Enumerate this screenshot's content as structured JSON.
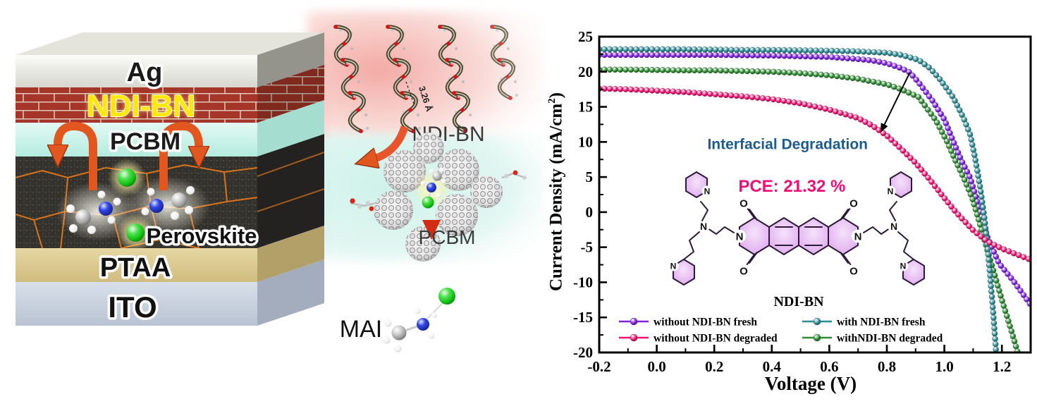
{
  "device_stack": {
    "layers": [
      {
        "id": "ag",
        "label": "Ag",
        "front_color": "#f1f1ec",
        "side_color": "#94948c",
        "top_color": "#e2e2da",
        "label_color": "#1a1a1a"
      },
      {
        "id": "ndi-bn",
        "label": "NDI-BN",
        "front_color": "#a53528",
        "side_color": "#832a20",
        "mortar_color": "#dcc9b8",
        "label_color": "#ffe70a"
      },
      {
        "id": "pcbm",
        "label": "PCBM",
        "front_color": "#cdf3ea",
        "side_color": "#a5ded1",
        "label_color": "#1a1a1a"
      },
      {
        "id": "perovskite",
        "label": "Perovskite",
        "front_color": "#34322c",
        "side_color": "#232220",
        "grain_boundary_color": "#e0761c",
        "label_color": "#111111"
      },
      {
        "id": "ptaa",
        "label": "PTAA",
        "front_color": "#dcc98f",
        "side_color": "#b3a068",
        "label_color": "#111111"
      },
      {
        "id": "ito",
        "label": "ITO",
        "front_color": "#cad3df",
        "side_color": "#a3adbd",
        "label_color": "#111111"
      }
    ]
  },
  "inset": {
    "ndi_bn_label": "NDI-BN",
    "pcbm_label": "PCBM",
    "mai_label": "MAI",
    "pi_stacking_distance": "3.26 Å",
    "atom_colors": {
      "carbon": "#9a9a9a",
      "nitrogen": "#2c3fe0",
      "hydrogen": "#f5f5f5",
      "halide": "#17c617",
      "oxygen": "#dd2211"
    }
  },
  "chart_data": {
    "type": "line",
    "title": "",
    "xlabel": "Voltage (V)",
    "ylabel": "Current Density (mA/cm2)",
    "ylabel_parts": {
      "main": "Current Density (mA/cm",
      "sup": "2",
      "close": ")"
    },
    "xlim": [
      -0.2,
      1.3
    ],
    "ylim": [
      -20,
      25
    ],
    "grid": false,
    "x_tick_values": [
      -0.2,
      0.0,
      0.2,
      0.4,
      0.6,
      0.8,
      1.0,
      1.2
    ],
    "x_tick_labels": [
      "-0.2",
      "0.0",
      "0.2",
      "0.4",
      "0.6",
      "0.8",
      "1.0",
      "1.2"
    ],
    "x_minor_values": [
      -0.1,
      0.1,
      0.3,
      0.5,
      0.7,
      0.9,
      1.1,
      1.3
    ],
    "y_tick_values": [
      -20,
      -15,
      -10,
      -5,
      0,
      5,
      10,
      15,
      20,
      25
    ],
    "y_tick_labels": [
      "-20",
      "-15",
      "-10",
      "-5",
      "0",
      "5",
      "10",
      "15",
      "20",
      "25"
    ],
    "y_minor_values": [
      -17.5,
      -12.5,
      -7.5,
      -2.5,
      2.5,
      7.5,
      12.5,
      17.5,
      22.5
    ],
    "legend_position": "lower-left-two-columns",
    "series": [
      {
        "name": "without NDI-BN fresh",
        "color": "#7e22dd",
        "points": [
          [
            -0.2,
            22.4
          ],
          [
            -0.1,
            22.4
          ],
          [
            0,
            22.4
          ],
          [
            0.1,
            22.4
          ],
          [
            0.2,
            22.4
          ],
          [
            0.3,
            22.35
          ],
          [
            0.4,
            22.3
          ],
          [
            0.5,
            22.2
          ],
          [
            0.6,
            22.1
          ],
          [
            0.7,
            21.8
          ],
          [
            0.75,
            21.6
          ],
          [
            0.8,
            21.2
          ],
          [
            0.85,
            20.5
          ],
          [
            0.88,
            19.9
          ],
          [
            0.91,
            18.5
          ],
          [
            0.96,
            15.8
          ],
          [
            1.0,
            13.2
          ],
          [
            1.03,
            10.2
          ],
          [
            1.06,
            7.3
          ],
          [
            1.09,
            4.9
          ],
          [
            1.11,
            2.1
          ],
          [
            1.13,
            -0.8
          ],
          [
            1.15,
            -3.6
          ],
          [
            1.19,
            -7.3
          ],
          [
            1.24,
            -9.8
          ],
          [
            1.3,
            -13.2
          ]
        ]
      },
      {
        "name": "withNDI-BN degraded",
        "color": "#2e8b33",
        "points": [
          [
            -0.2,
            20.3
          ],
          [
            -0.1,
            20.3
          ],
          [
            0,
            20.25
          ],
          [
            0.1,
            20.2
          ],
          [
            0.2,
            20.2
          ],
          [
            0.3,
            20.1
          ],
          [
            0.4,
            20.0
          ],
          [
            0.5,
            19.8
          ],
          [
            0.6,
            19.5
          ],
          [
            0.7,
            19.0
          ],
          [
            0.8,
            18.2
          ],
          [
            0.85,
            17.5
          ],
          [
            0.91,
            16.4
          ],
          [
            0.97,
            13.1
          ],
          [
            1.01,
            10.0
          ],
          [
            1.04,
            7.2
          ],
          [
            1.067,
            4.9
          ],
          [
            1.096,
            2.1
          ],
          [
            1.115,
            -0.5
          ],
          [
            1.15,
            -5.5
          ],
          [
            1.2,
            -12.5
          ],
          [
            1.23,
            -16.5
          ],
          [
            1.255,
            -20
          ]
        ]
      },
      {
        "name": "with NDI-BN fresh",
        "color": "#2e8b94",
        "points": [
          [
            -0.2,
            23.2
          ],
          [
            -0.1,
            23.2
          ],
          [
            0,
            23.2
          ],
          [
            0.1,
            23.2
          ],
          [
            0.2,
            23.15
          ],
          [
            0.3,
            23.1
          ],
          [
            0.4,
            23.1
          ],
          [
            0.5,
            23.05
          ],
          [
            0.6,
            23.0
          ],
          [
            0.7,
            22.9
          ],
          [
            0.8,
            22.7
          ],
          [
            0.85,
            22.4
          ],
          [
            0.91,
            21.7
          ],
          [
            0.95,
            20.5
          ],
          [
            0.985,
            18.9
          ],
          [
            1.03,
            16.4
          ],
          [
            1.067,
            13.4
          ],
          [
            1.09,
            11.0
          ],
          [
            1.104,
            8.3
          ],
          [
            1.116,
            5.6
          ],
          [
            1.126,
            3.1
          ],
          [
            1.14,
            -1.0
          ],
          [
            1.15,
            -5.0
          ],
          [
            1.16,
            -9.5
          ],
          [
            1.17,
            -14.5
          ],
          [
            1.18,
            -20
          ]
        ]
      },
      {
        "name": "without NDI-BN degraded",
        "color": "#ef1372",
        "points": [
          [
            -0.2,
            17.6
          ],
          [
            -0.1,
            17.5
          ],
          [
            0,
            17.3
          ],
          [
            0.1,
            17.1
          ],
          [
            0.2,
            16.8
          ],
          [
            0.3,
            16.5
          ],
          [
            0.4,
            16.1
          ],
          [
            0.5,
            15.5
          ],
          [
            0.6,
            14.6
          ],
          [
            0.7,
            13.4
          ],
          [
            0.75,
            12.3
          ],
          [
            0.8,
            10.9
          ],
          [
            0.85,
            9.0
          ],
          [
            0.9,
            7.0
          ],
          [
            0.95,
            4.6
          ],
          [
            1.0,
            2.0
          ],
          [
            1.04,
            0
          ],
          [
            1.1,
            -2.6
          ],
          [
            1.15,
            -4.2
          ],
          [
            1.2,
            -5.2
          ],
          [
            1.25,
            -6.0
          ],
          [
            1.3,
            -6.8
          ]
        ]
      }
    ],
    "legend": [
      {
        "label": "without NDI-BN fresh",
        "color": "#7e22dd"
      },
      {
        "label": "without NDI-BN degraded",
        "color": "#ef1372"
      },
      {
        "label": "with NDI-BN fresh",
        "color": "#2e8b94"
      },
      {
        "label": "withNDI-BN degraded",
        "color": "#2e8b33"
      }
    ],
    "annotations": {
      "interfacial_degradation": {
        "text": "Interfacial Degradation",
        "color": "#1c5c8e",
        "x": 0.455,
        "y": 9.7
      },
      "pce": {
        "text": "PCE: 21.32 %",
        "color": "#ee1077",
        "x": 0.47,
        "y": 3.7
      },
      "arrow": {
        "x1": 0.88,
        "y1": 19.9,
        "x2": 0.78,
        "y2": 11.5
      }
    },
    "structure": {
      "label": "NDI-BN",
      "oxygen": "O",
      "nitrogen": "N",
      "ring_fill": "#e7bdf3",
      "ring_stroke": "#2d1a3a"
    }
  }
}
